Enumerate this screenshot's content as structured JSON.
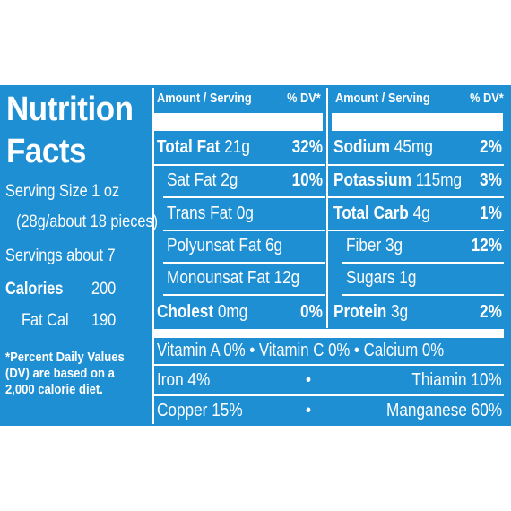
{
  "label": {
    "title_line1": "Nutrition",
    "title_line2": "Facts",
    "serving_size": "Serving Size 1 oz",
    "serving_size_detail": "(28g/about 18 pieces)",
    "servings": "Servings about 7",
    "calories_label": "Calories",
    "calories_value": "200",
    "fat_cal_label": "Fat Cal",
    "fat_cal_value": "190",
    "footnote_line1": "*Percent Daily Values",
    "footnote_line2": "(DV) are based on a",
    "footnote_line3": "2,000 calorie diet."
  },
  "headers": {
    "amount_left": "Amount / Serving",
    "dv_left": "% DV*",
    "amount_right": "Amount / Serving",
    "dv_right": "% DV*"
  },
  "left_rows": [
    {
      "name": "Total Fat",
      "amount": "21g",
      "dv": "32%"
    },
    {
      "name": "Sat Fat",
      "amount": "2g",
      "dv": "10%"
    },
    {
      "name": "Trans Fat",
      "amount": "0g",
      "dv": ""
    },
    {
      "name": "Polyunsat Fat",
      "amount": "6g",
      "dv": ""
    },
    {
      "name": "Monounsat Fat",
      "amount": "12g",
      "dv": ""
    },
    {
      "name": "Cholest",
      "amount": "0mg",
      "dv": "0%"
    }
  ],
  "right_rows": [
    {
      "name": "Sodium",
      "amount": "45mg",
      "dv": "2%"
    },
    {
      "name": "Potassium",
      "amount": "115mg",
      "dv": "3%"
    },
    {
      "name": "Total Carb",
      "amount": "4g",
      "dv": "1%"
    },
    {
      "name": "Fiber",
      "amount": "3g",
      "dv": "12%"
    },
    {
      "name": "Sugars",
      "amount": "1g",
      "dv": ""
    },
    {
      "name": "Protein",
      "amount": "3g",
      "dv": "2%"
    }
  ],
  "vitamins": {
    "line1": "Vitamin  A 0%  •  Vitamin  C 0%  •  Calcium  0%",
    "iron": "Iron   4%",
    "bullet": "•",
    "thiamin": "Thiamin  10%",
    "copper": "Copper  15%",
    "manganese": "Manganese  60%"
  },
  "colors": {
    "panel_blue": "#1f8fd4",
    "text": "#ffffff"
  }
}
